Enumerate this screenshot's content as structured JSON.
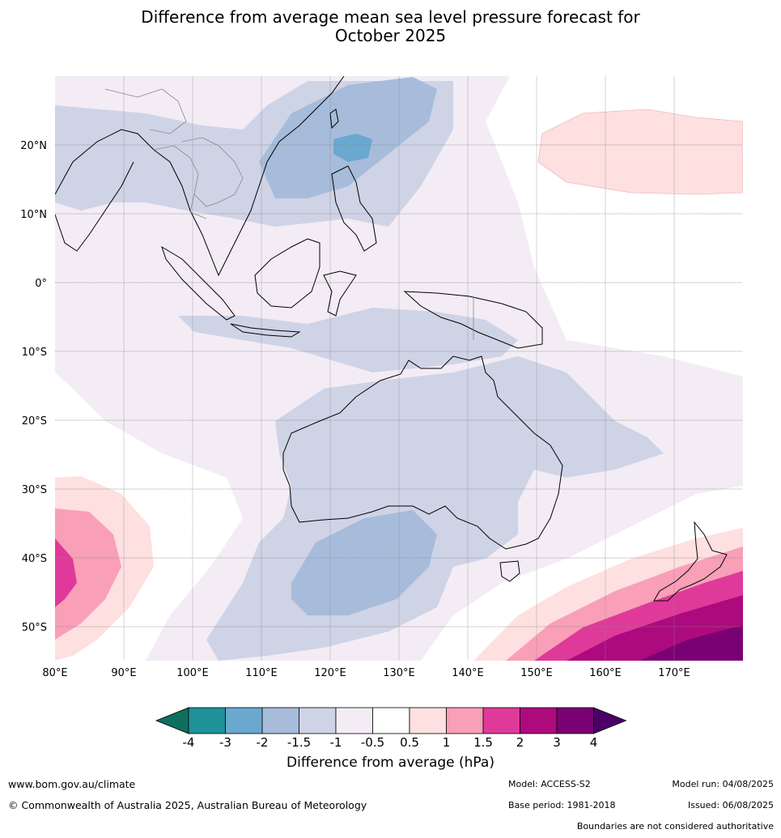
{
  "title_line1": "Difference from average mean sea level pressure forecast for",
  "title_line2": "October 2025",
  "map": {
    "lat_ticks": [
      "20°N",
      "10°N",
      "0°",
      "10°S",
      "20°S",
      "30°S",
      "40°S",
      "50°S"
    ],
    "lon_ticks": [
      "80°E",
      "90°E",
      "100°E",
      "110°E",
      "120°E",
      "130°E",
      "140°E",
      "150°E",
      "160°E",
      "170°E"
    ]
  },
  "colorbar": {
    "ticks": [
      "-4",
      "-3",
      "-2",
      "-1.5",
      "-1",
      "-0.5",
      "0.5",
      "1",
      "1.5",
      "2",
      "3",
      "4"
    ],
    "colors": [
      "#0f6e5e",
      "#1f9199",
      "#6aa8cf",
      "#a6bcda",
      "#cfd3e6",
      "#f3ecf5",
      "#ffffff",
      "#fde0df",
      "#f99fb8",
      "#df3a9a",
      "#ad0a7e",
      "#7a0174",
      "#4b0067"
    ],
    "label": "Difference from average (hPa)"
  },
  "footer": {
    "website": "www.bom.gov.au/climate",
    "copyright": "© Commonwealth of Australia 2025, Australian Bureau of Meteorology",
    "model": "Model: ACCESS-S2",
    "base_period": "Base period: 1981-2018",
    "model_run": "Model run: 04/08/2025",
    "issued": "Issued: 06/08/2025",
    "disclaimer": "Boundaries are not considered authoritative"
  }
}
